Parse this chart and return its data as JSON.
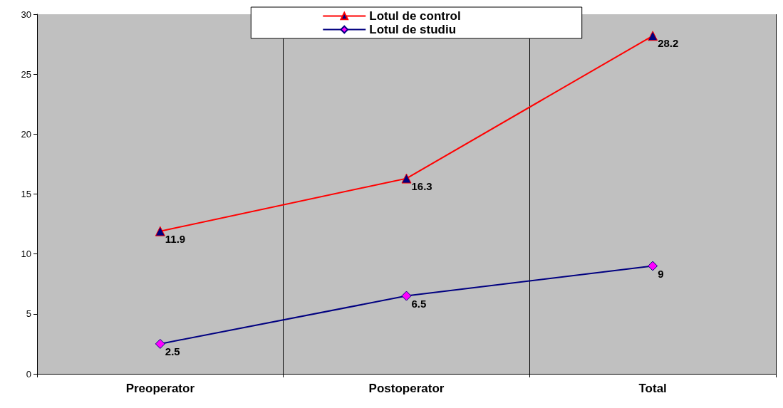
{
  "chart_data": {
    "type": "line",
    "categories": [
      "Preoperator",
      "Postoperator",
      "Total"
    ],
    "series": [
      {
        "name": "Lotul de control",
        "color": "#ff0000",
        "marker": "triangle",
        "values": [
          11.9,
          16.3,
          28.2
        ]
      },
      {
        "name": "Lotul de studiu",
        "color": "#000080",
        "marker": "diamond",
        "values": [
          2.5,
          6.5,
          9
        ]
      }
    ],
    "ylim": [
      0,
      30
    ],
    "yticks": [
      0,
      5,
      10,
      15,
      20,
      25,
      30
    ],
    "grid": "x",
    "legend": "top",
    "data_labels": true
  }
}
